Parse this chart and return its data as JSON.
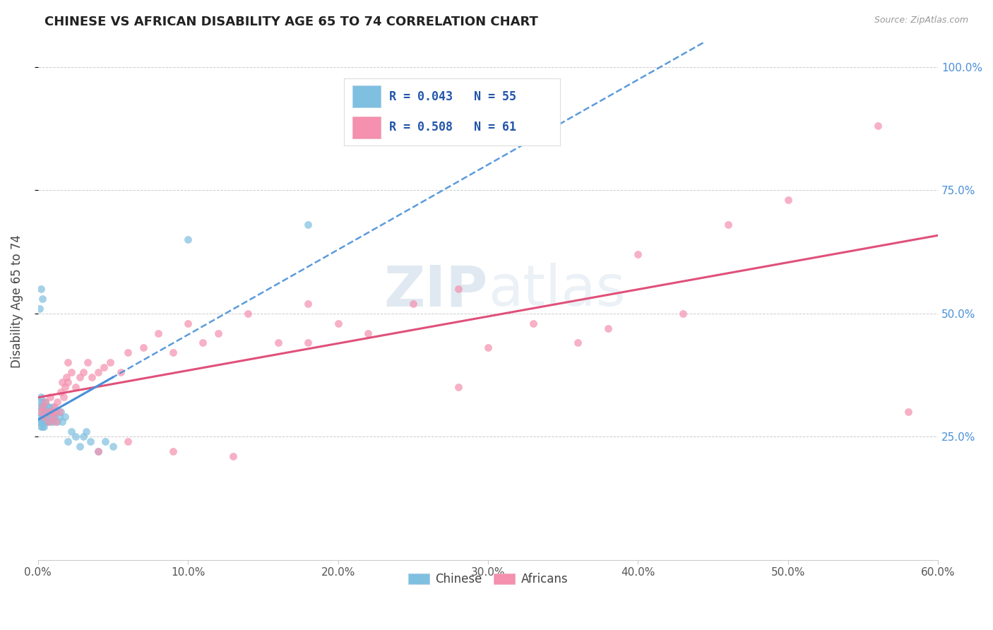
{
  "title": "CHINESE VS AFRICAN DISABILITY AGE 65 TO 74 CORRELATION CHART",
  "source": "Source: ZipAtlas.com",
  "ylabel": "Disability Age 65 to 74",
  "xlim": [
    0.0,
    0.6
  ],
  "ylim": [
    0.0,
    1.05
  ],
  "xtick_vals": [
    0.0,
    0.1,
    0.2,
    0.3,
    0.4,
    0.5,
    0.6
  ],
  "xtick_labels": [
    "0.0%",
    "10.0%",
    "20.0%",
    "30.0%",
    "40.0%",
    "50.0%",
    "60.0%"
  ],
  "ytick_vals": [
    0.25,
    0.5,
    0.75,
    1.0
  ],
  "ytick_labels": [
    "25.0%",
    "50.0%",
    "75.0%",
    "100.0%"
  ],
  "chinese_color": "#7fbfdf",
  "african_color": "#f590ae",
  "chinese_line_color": "#4a90d9",
  "african_line_color": "#e0507a",
  "watermark_color": "#c8d8e8",
  "chinese_R": 0.043,
  "chinese_N": 55,
  "african_R": 0.508,
  "african_N": 61,
  "legend_chinese": "R = 0.043   N = 55",
  "legend_african": "R = 0.508   N = 61",
  "chinese_x": [
    0.001,
    0.001,
    0.001,
    0.002,
    0.002,
    0.002,
    0.002,
    0.002,
    0.003,
    0.003,
    0.003,
    0.003,
    0.003,
    0.004,
    0.004,
    0.004,
    0.004,
    0.005,
    0.005,
    0.005,
    0.005,
    0.006,
    0.006,
    0.006,
    0.007,
    0.007,
    0.007,
    0.008,
    0.008,
    0.009,
    0.009,
    0.01,
    0.01,
    0.011,
    0.012,
    0.013,
    0.014,
    0.015,
    0.016,
    0.018,
    0.02,
    0.022,
    0.025,
    0.028,
    0.03,
    0.032,
    0.035,
    0.04,
    0.045,
    0.05,
    0.001,
    0.002,
    0.003,
    0.1,
    0.18
  ],
  "chinese_y": [
    0.28,
    0.32,
    0.3,
    0.27,
    0.31,
    0.29,
    0.33,
    0.28,
    0.27,
    0.31,
    0.29,
    0.32,
    0.28,
    0.3,
    0.29,
    0.31,
    0.27,
    0.3,
    0.28,
    0.32,
    0.29,
    0.3,
    0.31,
    0.28,
    0.29,
    0.3,
    0.31,
    0.28,
    0.3,
    0.29,
    0.3,
    0.28,
    0.31,
    0.29,
    0.3,
    0.28,
    0.29,
    0.3,
    0.28,
    0.29,
    0.24,
    0.26,
    0.25,
    0.23,
    0.25,
    0.26,
    0.24,
    0.22,
    0.24,
    0.23,
    0.51,
    0.55,
    0.53,
    0.65,
    0.68
  ],
  "african_x": [
    0.002,
    0.003,
    0.004,
    0.005,
    0.006,
    0.007,
    0.008,
    0.009,
    0.01,
    0.011,
    0.012,
    0.013,
    0.014,
    0.015,
    0.016,
    0.017,
    0.018,
    0.019,
    0.02,
    0.022,
    0.025,
    0.028,
    0.03,
    0.033,
    0.036,
    0.04,
    0.044,
    0.048,
    0.055,
    0.06,
    0.07,
    0.08,
    0.09,
    0.1,
    0.11,
    0.12,
    0.14,
    0.16,
    0.18,
    0.2,
    0.22,
    0.25,
    0.28,
    0.3,
    0.33,
    0.36,
    0.4,
    0.43,
    0.46,
    0.5,
    0.01,
    0.02,
    0.04,
    0.06,
    0.09,
    0.13,
    0.18,
    0.28,
    0.38,
    0.56,
    0.58
  ],
  "african_y": [
    0.3,
    0.31,
    0.29,
    0.32,
    0.3,
    0.28,
    0.33,
    0.3,
    0.29,
    0.31,
    0.28,
    0.32,
    0.3,
    0.34,
    0.36,
    0.33,
    0.35,
    0.37,
    0.36,
    0.38,
    0.35,
    0.37,
    0.38,
    0.4,
    0.37,
    0.38,
    0.39,
    0.4,
    0.38,
    0.42,
    0.43,
    0.46,
    0.42,
    0.48,
    0.44,
    0.46,
    0.5,
    0.44,
    0.52,
    0.48,
    0.46,
    0.52,
    0.55,
    0.43,
    0.48,
    0.44,
    0.62,
    0.5,
    0.68,
    0.73,
    0.3,
    0.4,
    0.22,
    0.24,
    0.22,
    0.21,
    0.44,
    0.35,
    0.47,
    0.88,
    0.3
  ]
}
